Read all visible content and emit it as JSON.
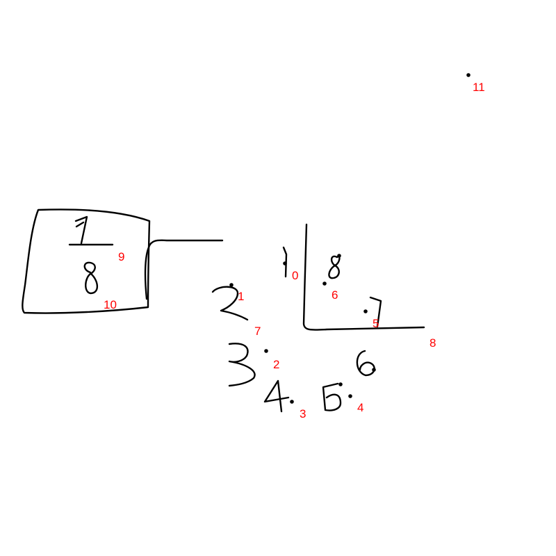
{
  "hand_drawn_text": {
    "fraction_numerator": "1",
    "fraction_denominator": "8",
    "digit_1": "1",
    "digit_2": "2",
    "digit_3": "3",
    "digit_4": "4",
    "digit_5": "5",
    "digit_6": "6",
    "digit_7": "7",
    "digit_8": "8"
  },
  "point_labels": [
    "0",
    "1",
    "2",
    "3",
    "4",
    "5",
    "6",
    "7",
    "8",
    "9",
    "10",
    "11"
  ],
  "colors": {
    "ink": "#000000",
    "label": "#ff0000",
    "background": "#ffffff"
  }
}
